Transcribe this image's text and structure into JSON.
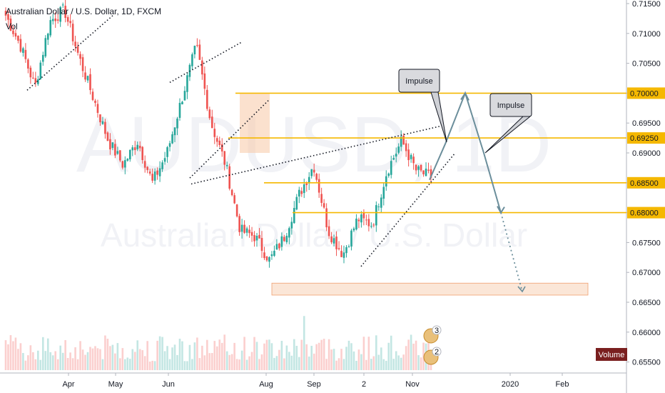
{
  "header": {
    "title": "Australian Dollar / U.S. Dollar, 1D, FXCM",
    "volume_label": "Vol"
  },
  "watermark": {
    "symbol": "AUDUSD, 1D",
    "name": "Australian Dollar / U.S. Dollar"
  },
  "colors": {
    "up": "#26a69a",
    "down": "#ef5350",
    "level": "#f5b800",
    "zone": "#f7c8a6",
    "arrow": "#6b8e9b",
    "volume_badge": "#7a1f1f"
  },
  "chart_data": {
    "type": "candlestick",
    "ylim": [
      0.6545,
      0.7155
    ],
    "y_ticks": [
      "0.71500",
      "0.71000",
      "0.70500",
      "0.70000",
      "0.69500",
      "0.69000",
      "0.68500",
      "0.68000",
      "0.67500",
      "0.67000",
      "0.66500",
      "0.66000",
      "0.65500"
    ],
    "x_ticks": [
      "Apr",
      "May",
      "Jun",
      "Aug",
      "Sep",
      "2",
      "Nov",
      "2020",
      "Feb"
    ],
    "ohlc_anchor_closes": [
      0.713,
      0.708,
      0.701,
      0.712,
      0.714,
      0.706,
      0.699,
      0.692,
      0.688,
      0.692,
      0.685,
      0.69,
      0.699,
      0.708,
      0.695,
      0.688,
      0.677,
      0.676,
      0.672,
      0.676,
      0.683,
      0.688,
      0.677,
      0.673,
      0.679,
      0.678,
      0.687,
      0.692,
      0.687,
      0.686
    ],
    "price_levels": [
      {
        "value": 0.7,
        "label": "0.70000"
      },
      {
        "value": 0.6925,
        "label": "0.69250"
      },
      {
        "value": 0.685,
        "label": "0.68500"
      },
      {
        "value": 0.68,
        "label": "0.68000"
      }
    ],
    "annotations": [
      {
        "text": "Impulse"
      },
      {
        "text": "Impulse"
      }
    ],
    "volume_badge": "Volume",
    "event_markers": [
      "3",
      "2"
    ]
  }
}
